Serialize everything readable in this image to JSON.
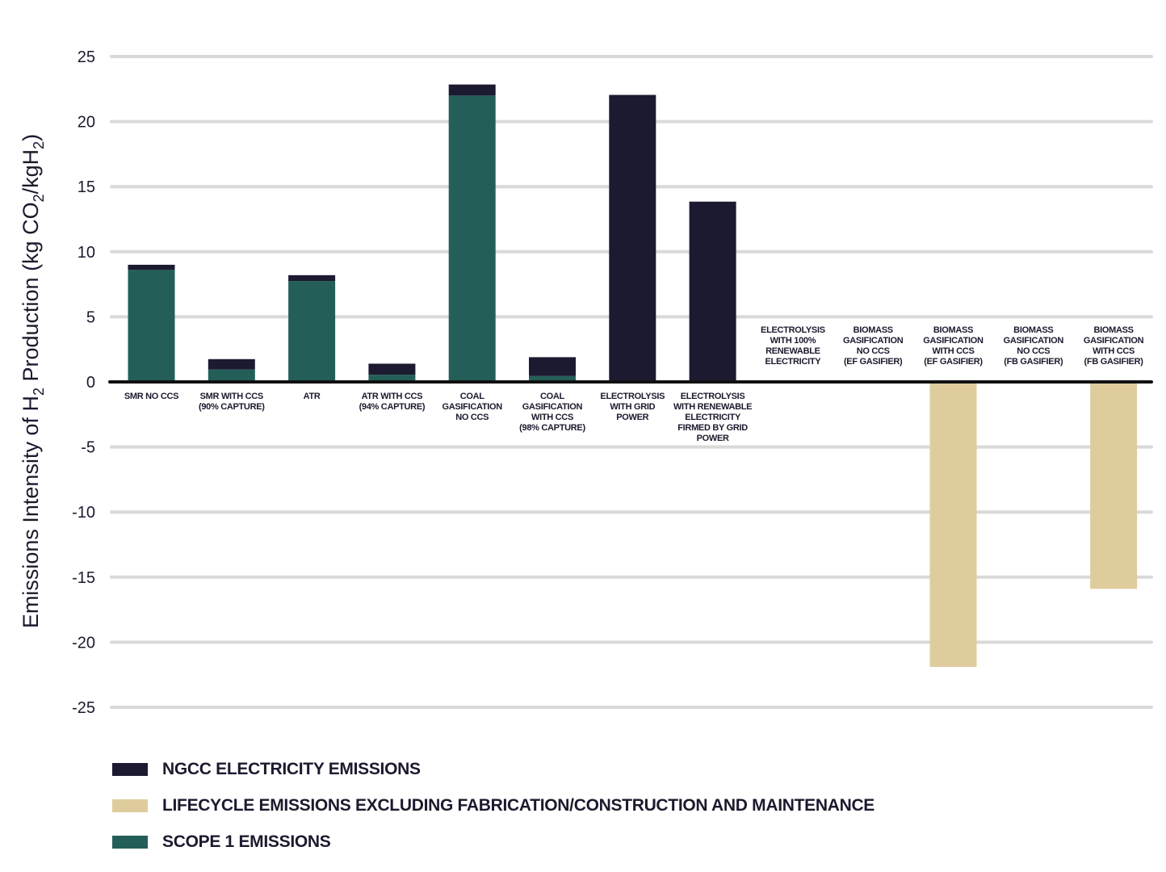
{
  "chart_data": {
    "type": "bar",
    "stacked": true,
    "title": "",
    "xlabel": "",
    "ylabel": "Emissions Intensity of H2 Production (kg CO2/kgH2)",
    "ylabel_parts": {
      "a": "Emissions Intensity of H",
      "sub1": "2",
      "b": " Production (kg CO",
      "sub2": "2",
      "c": "/kgH",
      "sub3": "2",
      "d": ")"
    },
    "ylim": [
      -25,
      25
    ],
    "yticks": [
      25,
      20,
      15,
      10,
      5,
      0,
      -5,
      -10,
      -15,
      -20,
      -25
    ],
    "ytick_labels": [
      "25",
      "20",
      "15",
      "10",
      "5",
      "0",
      "-5",
      "-10",
      "-15",
      "-20",
      "-25"
    ],
    "grid": true,
    "legend_position": "bottom-left",
    "categories": [
      [
        "SMR NO CCS"
      ],
      [
        "SMR WITH CCS",
        "(90% CAPTURE)"
      ],
      [
        "ATR"
      ],
      [
        "ATR WITH CCS",
        "(94% CAPTURE)"
      ],
      [
        "COAL",
        "GASIFICATION",
        "NO CCS"
      ],
      [
        "COAL",
        "GASIFICATION",
        "WITH CCS",
        "(98% CAPTURE)"
      ],
      [
        "ELECTROLYSIS",
        "WITH GRID",
        "POWER"
      ],
      [
        "ELECTROLYSIS",
        "WITH RENEWABLE",
        "ELECTRICITY",
        "FIRMED BY GRID",
        "POWER"
      ],
      [
        "ELECTROLYSIS",
        "WITH 100%",
        "RENEWABLE",
        "ELECTRICITY"
      ],
      [
        "BIOMASS",
        "GASIFICATION",
        "NO CCS",
        "(EF GASIFIER)"
      ],
      [
        "BIOMASS",
        "GASIFICATION",
        "WITH CCS",
        "(EF GASIFIER)"
      ],
      [
        "BIOMASS",
        "GASIFICATION",
        "NO CCS",
        "(FB GASIFIER)"
      ],
      [
        "BIOMASS",
        "GASIFICATION",
        "WITH CCS",
        "(FB GASIFIER)"
      ]
    ],
    "label_above_axis": [
      false,
      false,
      false,
      false,
      false,
      false,
      false,
      false,
      true,
      true,
      true,
      true,
      true
    ],
    "series": [
      {
        "name": "SCOPE 1 EMISSIONS",
        "color": "#235f58",
        "values": [
          8.6,
          0.95,
          7.75,
          0.55,
          22.0,
          0.45,
          0,
          0,
          0,
          0,
          0,
          0,
          0
        ]
      },
      {
        "name": "NGCC ELECTRICITY EMISSIONS",
        "color": "#1b1a30",
        "values": [
          0.4,
          0.8,
          0.45,
          0.85,
          0.85,
          1.45,
          22.05,
          13.85,
          0,
          0,
          0,
          0,
          0
        ]
      },
      {
        "name": "LIFECYCLE EMISSIONS EXCLUDING FABRICATION/CONSTRUCTION AND MAINTENANCE",
        "color": "#dfcc9c",
        "values": [
          0,
          0,
          0,
          0,
          0,
          0,
          0,
          0,
          0,
          0,
          -21.9,
          0,
          -15.9
        ]
      }
    ],
    "legend": [
      {
        "label": "NGCC ELECTRICITY EMISSIONS",
        "color": "#1b1a30"
      },
      {
        "label": "LIFECYCLE EMISSIONS EXCLUDING FABRICATION/CONSTRUCTION AND MAINTENANCE",
        "color": "#dfcc9c"
      },
      {
        "label": "SCOPE 1 EMISSIONS",
        "color": "#235f58"
      }
    ]
  },
  "colors": {
    "grid": "#d9d9d9",
    "axis": "#111111",
    "text": "#1b1a2e"
  }
}
